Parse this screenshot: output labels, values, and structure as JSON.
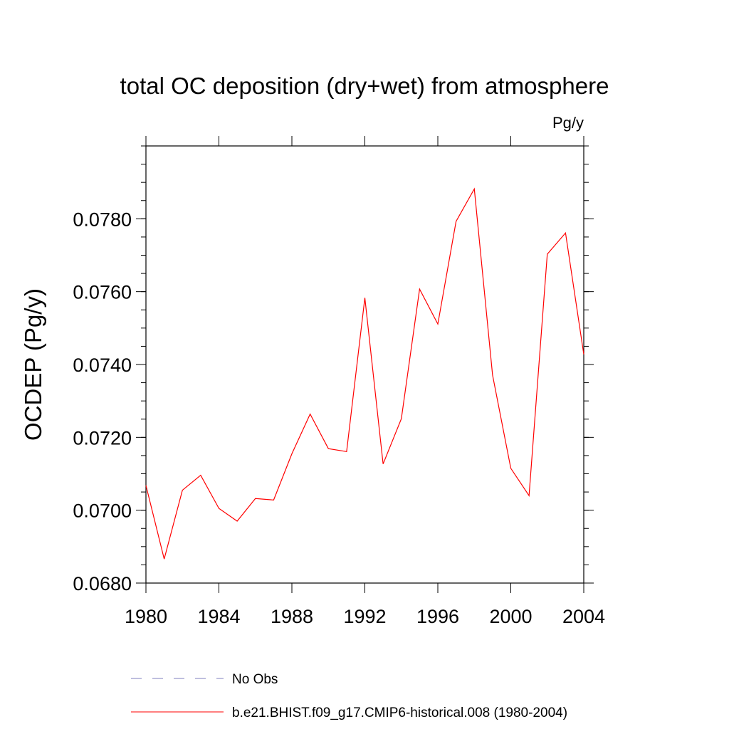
{
  "chart_data": {
    "type": "line",
    "title": "total OC deposition (dry+wet) from atmosphere",
    "units": "Pg/y",
    "ylabel": "OCDEP  (Pg/y)",
    "xlabel": "",
    "xlim": [
      1980,
      2004
    ],
    "ylim": [
      0.068,
      0.08
    ],
    "x_ticks": [
      1980,
      1984,
      1988,
      1992,
      1996,
      2000,
      2004
    ],
    "x_tick_labels": [
      "1980",
      "1984",
      "1988",
      "1992",
      "1996",
      "2000",
      "2004"
    ],
    "y_ticks": [
      0.068,
      0.07,
      0.072,
      0.074,
      0.076,
      0.078
    ],
    "y_tick_labels": [
      "0.0680",
      "0.0700",
      "0.0720",
      "0.0740",
      "0.0760",
      "0.0780"
    ],
    "grid": false,
    "legend_position": "bottom",
    "series": [
      {
        "name": "b.e21.BHIST.f09_g17.CMIP6-historical.008 (1980-2004)",
        "color": "#ff0000",
        "style": "solid",
        "x": [
          1980,
          1981,
          1982,
          1983,
          1984,
          1985,
          1986,
          1987,
          1988,
          1989,
          1990,
          1991,
          1992,
          1993,
          1994,
          1995,
          1996,
          1997,
          1998,
          1999,
          2000,
          2001,
          2002,
          2003,
          2004
        ],
        "y": [
          0.07068,
          0.06866,
          0.07055,
          0.07096,
          0.07005,
          0.0697,
          0.07032,
          0.07028,
          0.07155,
          0.07264,
          0.07169,
          0.07161,
          0.07583,
          0.07127,
          0.07251,
          0.07607,
          0.07511,
          0.07793,
          0.07882,
          0.07371,
          0.07115,
          0.0704,
          0.07703,
          0.07761,
          0.07428
        ]
      }
    ],
    "legend": [
      {
        "label": "No Obs",
        "color": "#7f7fbf",
        "style": "dashed"
      },
      {
        "label": "b.e21.BHIST.f09_g17.CMIP6-historical.008 (1980-2004)",
        "color": "#ff0000",
        "style": "solid"
      }
    ]
  }
}
